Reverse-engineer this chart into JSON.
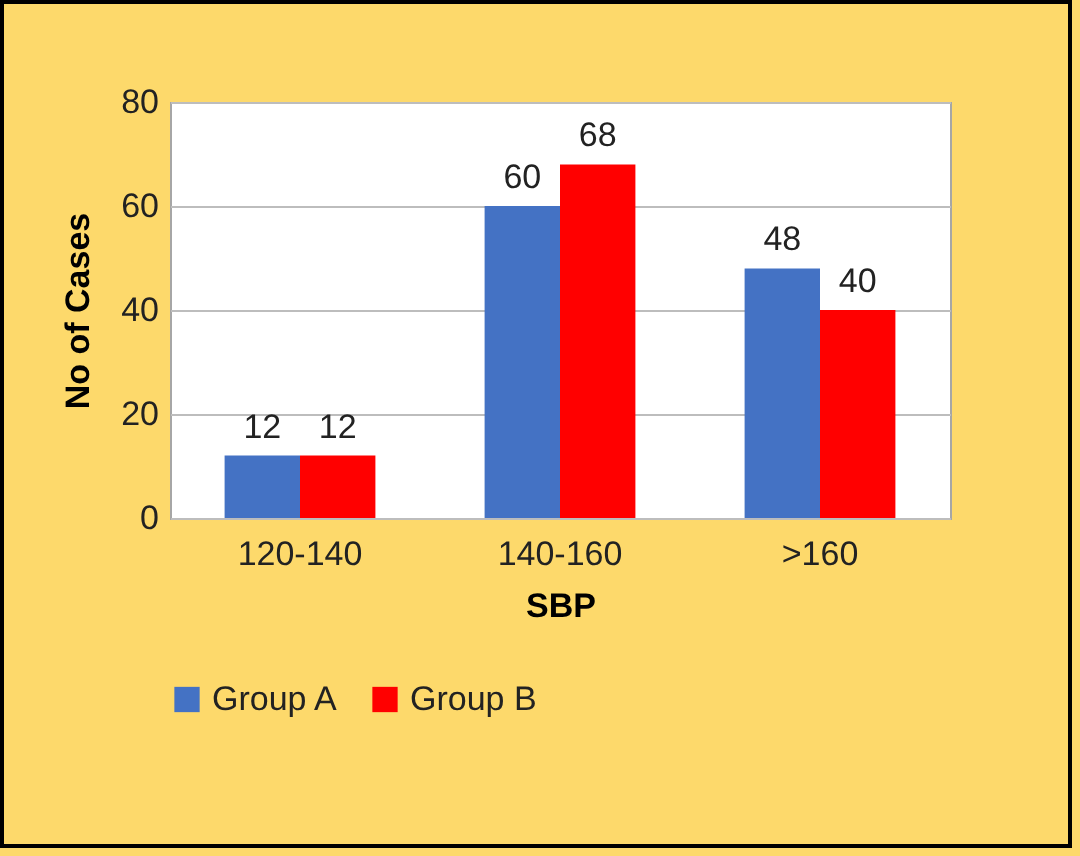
{
  "chart_data": {
    "type": "bar",
    "xlabel": "SBP",
    "ylabel": "No of Cases",
    "categories": [
      "120-140",
      "140-160",
      ">160"
    ],
    "series": [
      {
        "name": "Group A",
        "color": "#4472c4",
        "values": [
          12,
          60,
          48
        ]
      },
      {
        "name": "Group B",
        "color": "#ff0000",
        "values": [
          12,
          68,
          40
        ]
      }
    ],
    "ylim": [
      0,
      80
    ],
    "yticks": [
      0,
      20,
      40,
      60,
      80
    ],
    "grid": "y",
    "legend": "bottom",
    "data_labels": true
  }
}
